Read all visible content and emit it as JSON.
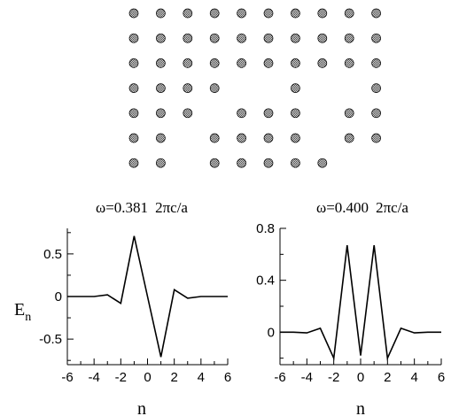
{
  "lattice": {
    "columns": 10,
    "rows": 7,
    "missing_sites": [
      [
        3,
        4
      ],
      [
        3,
        5
      ],
      [
        3,
        7
      ],
      [
        3,
        8
      ],
      [
        4,
        3
      ],
      [
        4,
        7
      ],
      [
        5,
        2
      ],
      [
        5,
        7
      ],
      [
        6,
        2
      ],
      [
        6,
        8
      ],
      [
        6,
        9
      ]
    ],
    "rod_color": "#8a8a8a"
  },
  "chart_data": [
    {
      "type": "line",
      "title_prefix": "ω=0.381",
      "title_unit": "2πc/a",
      "xlabel": "n",
      "ylabel": "E",
      "ylabel_subscript": "n",
      "xlim": [
        -6,
        6
      ],
      "ylim": [
        -0.8,
        0.8
      ],
      "xticks": [
        -6,
        -4,
        -2,
        0,
        2,
        4,
        6
      ],
      "xtick_labels": [
        "-6",
        "-4",
        "-2",
        "0",
        "2",
        "4",
        "6"
      ],
      "yticks": [
        0.5,
        0,
        -0.5
      ],
      "ytick_labels": [
        "0.5",
        "0",
        "-0.5"
      ],
      "x": [
        -6,
        -5,
        -4,
        -3,
        -2,
        -1,
        0,
        1,
        2,
        3,
        4,
        5,
        6
      ],
      "y": [
        0,
        0,
        0,
        0.02,
        -0.08,
        0.71,
        0,
        -0.71,
        0.08,
        -0.02,
        0,
        0,
        0
      ]
    },
    {
      "type": "line",
      "title_prefix": "ω=0.400",
      "title_unit": "2πc/a",
      "xlabel": "n",
      "ylabel": "",
      "xlim": [
        -6,
        6
      ],
      "ylim": [
        -0.25,
        0.8
      ],
      "xticks": [
        -6,
        -4,
        -2,
        0,
        2,
        4,
        6
      ],
      "xtick_labels": [
        "-6",
        "-4",
        "-2",
        "0",
        "2",
        "4",
        "6"
      ],
      "yticks": [
        0.8,
        0.4,
        0
      ],
      "ytick_labels": [
        "0.8",
        "0.4",
        "0"
      ],
      "x": [
        -6,
        -5,
        -4,
        -3,
        -2,
        -1,
        0,
        1,
        2,
        3,
        4,
        5,
        6
      ],
      "y": [
        0,
        0,
        -0.005,
        0.03,
        -0.2,
        0.67,
        -0.18,
        0.67,
        -0.2,
        0.03,
        -0.005,
        0,
        0
      ]
    }
  ]
}
